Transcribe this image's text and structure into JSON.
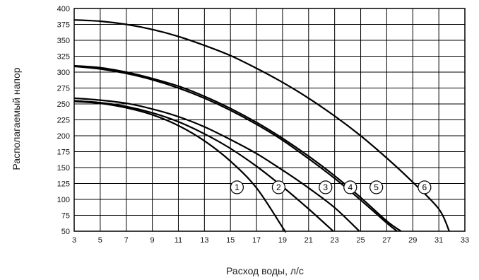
{
  "chart_data": {
    "type": "line",
    "xlabel": "Расход воды, л/с",
    "ylabel": "Располагаемый напор",
    "xlim": [
      3,
      33
    ],
    "ylim": [
      50,
      400
    ],
    "x_ticks": [
      "3",
      "5",
      "7",
      "9",
      "11",
      "13",
      "15",
      "17",
      "19",
      "21",
      "23",
      "25",
      "27",
      "29",
      "31",
      "33"
    ],
    "y_ticks": [
      "50",
      "75",
      "100",
      "125",
      "150",
      "175",
      "200",
      "225",
      "250",
      "275",
      "300",
      "325",
      "350",
      "375",
      "400"
    ],
    "grid": true,
    "series": [
      {
        "name": "1",
        "label_at": [
          15.5,
          119
        ],
        "points": [
          [
            3,
            254
          ],
          [
            5,
            251
          ],
          [
            7,
            244
          ],
          [
            9,
            233
          ],
          [
            11,
            216
          ],
          [
            13,
            192
          ],
          [
            15,
            160
          ],
          [
            17,
            118
          ],
          [
            19,
            56
          ],
          [
            19.2,
            50
          ]
        ]
      },
      {
        "name": "2",
        "label_at": [
          18.7,
          119
        ],
        "points": [
          [
            3,
            255
          ],
          [
            5,
            252
          ],
          [
            7,
            246
          ],
          [
            9,
            236
          ],
          [
            11,
            222
          ],
          [
            13,
            203
          ],
          [
            15,
            180
          ],
          [
            17,
            152
          ],
          [
            19,
            120
          ],
          [
            21,
            85
          ],
          [
            22.9,
            50
          ]
        ]
      },
      {
        "name": "3",
        "label_at": [
          22.3,
          119
        ],
        "points": [
          [
            3,
            259
          ],
          [
            5,
            256
          ],
          [
            7,
            251
          ],
          [
            9,
            242
          ],
          [
            11,
            230
          ],
          [
            13,
            214
          ],
          [
            15,
            194
          ],
          [
            17,
            172
          ],
          [
            19,
            146
          ],
          [
            21,
            118
          ],
          [
            23,
            87
          ],
          [
            24.9,
            50
          ]
        ]
      },
      {
        "name": "4",
        "label_at": [
          24.2,
          119
        ],
        "points": [
          [
            3,
            309
          ],
          [
            5,
            305
          ],
          [
            7,
            298
          ],
          [
            9,
            288
          ],
          [
            11,
            275
          ],
          [
            13,
            259
          ],
          [
            15,
            240
          ],
          [
            17,
            218
          ],
          [
            19,
            193
          ],
          [
            21,
            164
          ],
          [
            23,
            133
          ],
          [
            25,
            99
          ],
          [
            27,
            63
          ],
          [
            27.8,
            50
          ]
        ]
      },
      {
        "name": "5",
        "label_at": [
          26.2,
          119
        ],
        "points": [
          [
            3,
            310
          ],
          [
            5,
            307
          ],
          [
            7,
            300
          ],
          [
            9,
            290
          ],
          [
            11,
            278
          ],
          [
            13,
            262
          ],
          [
            15,
            243
          ],
          [
            17,
            221
          ],
          [
            19,
            196
          ],
          [
            21,
            168
          ],
          [
            23,
            137
          ],
          [
            25,
            103
          ],
          [
            27,
            66
          ],
          [
            28.1,
            50
          ]
        ]
      },
      {
        "name": "6",
        "label_at": [
          29.9,
          119
        ],
        "points": [
          [
            3,
            382
          ],
          [
            5,
            380
          ],
          [
            7,
            375
          ],
          [
            9,
            367
          ],
          [
            11,
            356
          ],
          [
            13,
            342
          ],
          [
            15,
            326
          ],
          [
            17,
            306
          ],
          [
            19,
            284
          ],
          [
            21,
            259
          ],
          [
            23,
            231
          ],
          [
            25,
            200
          ],
          [
            27,
            165
          ],
          [
            29,
            127
          ],
          [
            31,
            85
          ],
          [
            31.8,
            50
          ]
        ]
      }
    ]
  }
}
